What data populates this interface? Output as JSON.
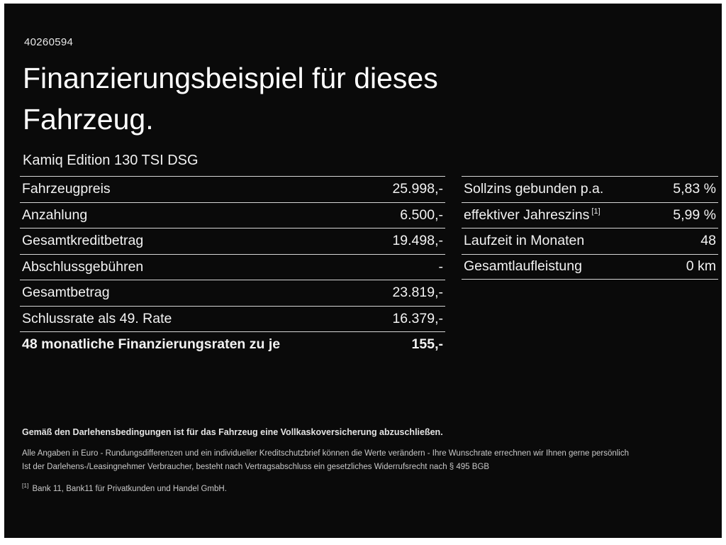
{
  "page": {
    "doc_number": "40260594",
    "title_line1": "Finanzierungsbeispiel für dieses",
    "title_line2": "Fahrzeug.",
    "model": "Kamiq Edition 130 TSI DSG"
  },
  "finance_table_left": {
    "rows": [
      {
        "label": "Fahrzeugpreis",
        "value": "25.998,-"
      },
      {
        "label": "Anzahlung",
        "value": "6.500,-"
      },
      {
        "label": "Gesamtkreditbetrag",
        "value": "19.498,-"
      },
      {
        "label": "Abschlussgebühren",
        "value": "-"
      },
      {
        "label": "Gesamtbetrag",
        "value": "23.819,-"
      },
      {
        "label": "Schlussrate als 49. Rate",
        "value": "16.379,-"
      },
      {
        "label": "48 monatliche Finanzierungsraten zu je",
        "value": "155,-"
      }
    ]
  },
  "finance_table_right": {
    "rows": [
      {
        "label": "Sollzins gebunden p.a.",
        "footnote": "",
        "value": "5,83 %"
      },
      {
        "label": "effektiver Jahreszins",
        "footnote": "[1]",
        "value": "5,99 %"
      },
      {
        "label": "Laufzeit in Monaten",
        "footnote": "",
        "value": "48"
      },
      {
        "label": "Gesamtlaufleistung",
        "footnote": "",
        "value": "0 km"
      }
    ]
  },
  "footer": {
    "insurance_note": "Gemäß den Darlehensbedingungen ist für das Fahrzeug eine Vollkaskoversicherung abzuschließen.",
    "euro_note": "Alle Angaben in Euro - Rundungsdifferenzen und ein individueller Kreditschutzbrief können die Werte verändern - Ihre Wunschrate errechnen wir Ihnen gerne persönlich",
    "widerruf_note": "Ist der Darlehens-/Leasingnehmer Verbraucher, besteht nach Vertragsabschluss ein gesetzliches Widerrufsrecht nach § 495 BGB",
    "footnote_marker": "[1]",
    "bank_note": "Bank 11, Bank11 für Privatkunden und Handel GmbH."
  },
  "colors": {
    "background": "#0a0a0a",
    "frame": "#ffffff",
    "text": "#f2f2f2",
    "divider": "#d6d6d6"
  }
}
